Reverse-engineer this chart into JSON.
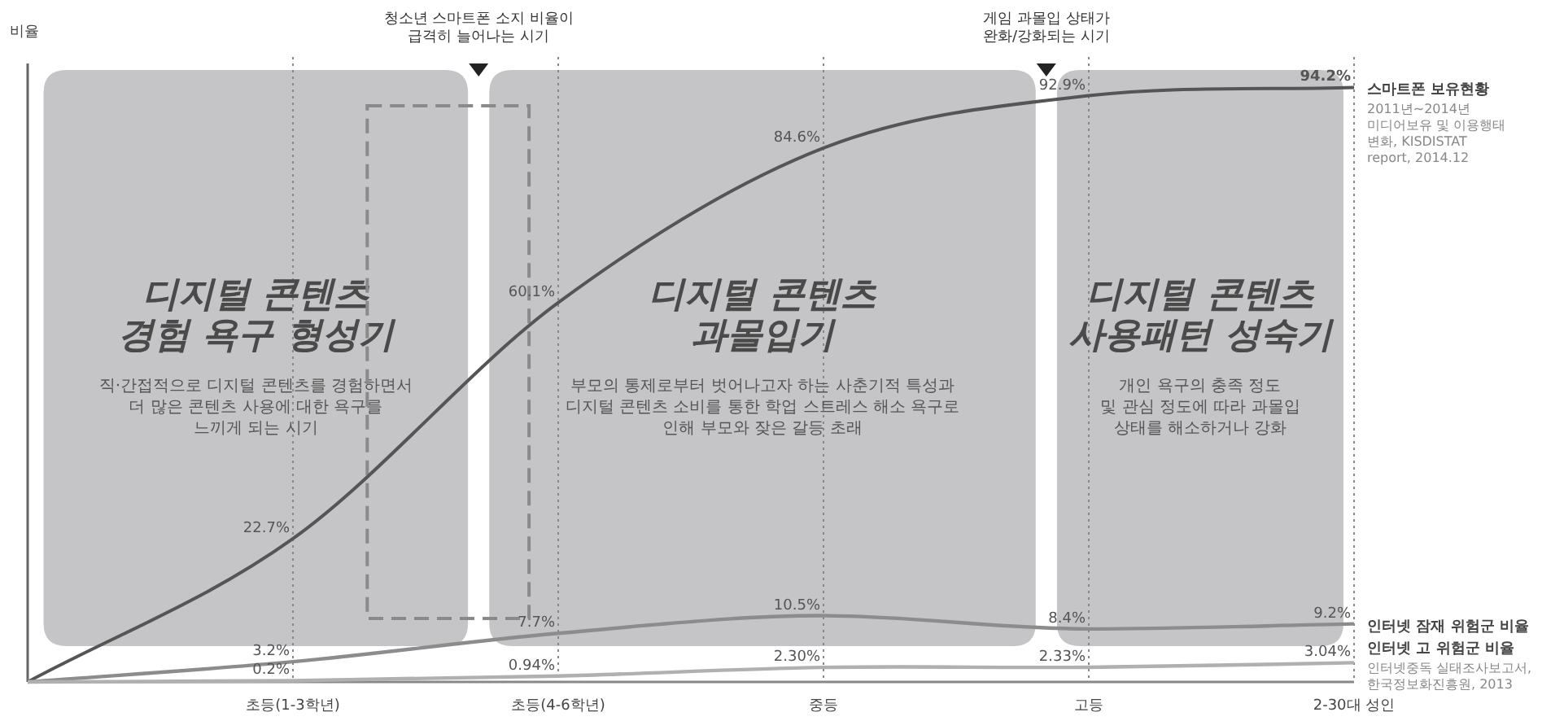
{
  "chart_data": {
    "type": "line",
    "ylabel": "비율",
    "categories": [
      null,
      "초등(1-3학년)",
      "초등(4-6학년)",
      "중등",
      "고등",
      "2-30대 성인"
    ],
    "ylim": [
      0,
      98
    ],
    "grid": "x",
    "tick_labels": "x",
    "marker": "none",
    "line_style": "solid",
    "legend": false,
    "series": [
      {
        "name": "스마트폰 보유현황",
        "color": "#555555",
        "values": [
          0,
          22.7,
          60.1,
          84.6,
          92.9,
          94.2
        ],
        "value_labels": [
          null,
          "22.7%",
          "60.1%",
          "84.6%",
          "92.9%",
          "94.2%"
        ]
      },
      {
        "name": "인터넷 잠재 위험군 비율",
        "color": "#8c8c8c",
        "values": [
          0,
          3.2,
          7.7,
          10.5,
          8.4,
          9.2
        ],
        "value_labels": [
          null,
          "3.2%",
          "7.7%",
          "10.5%",
          "8.4%",
          "9.2%"
        ]
      },
      {
        "name": "인터넷 고 위험군 비율",
        "color": "#b0b0b0",
        "values": [
          0,
          0.2,
          0.94,
          2.3,
          2.33,
          3.04
        ],
        "value_labels": [
          null,
          "0.2%",
          "0.94%",
          "2.30%",
          "2.33%",
          "3.04%"
        ]
      }
    ],
    "annotations": [
      "청소년 스마트폰 소지 비율이\n급격히 늘어나는 시기",
      "게임 과몰입 상태가\n완화/강화되는 시기",
      "디지털 콘텐츠\n경험 욕구 형성기",
      "직·간접적으로 디지털 콘텐츠를 경험하면서\n더 많은 콘텐츠 사용에 대한 욕구를\n느끼게 되는 시기",
      "디지털 콘텐츠\n과몰입기",
      "부모의 통제로부터 벗어나고자 하는 사춘기적 특성과\n디지털 콘텐츠 소비를 통한 학업 스트레스 해소 욕구로\n인해 부모와 잦은 갈등 초래",
      "디지털 콘텐츠\n사용패턴 성숙기",
      "개인 욕구의 충족 정도\n및 관심 정도에 따라 과몰입\n상태를 해소하거나 강화",
      "2011년~2014년\n미디어보유 및 이용행태\n변화, KISDISTAT\nreport, 2014.12",
      "인터넷중독 실태조사보고서,\n한국정보화진흥원, 2013"
    ]
  }
}
